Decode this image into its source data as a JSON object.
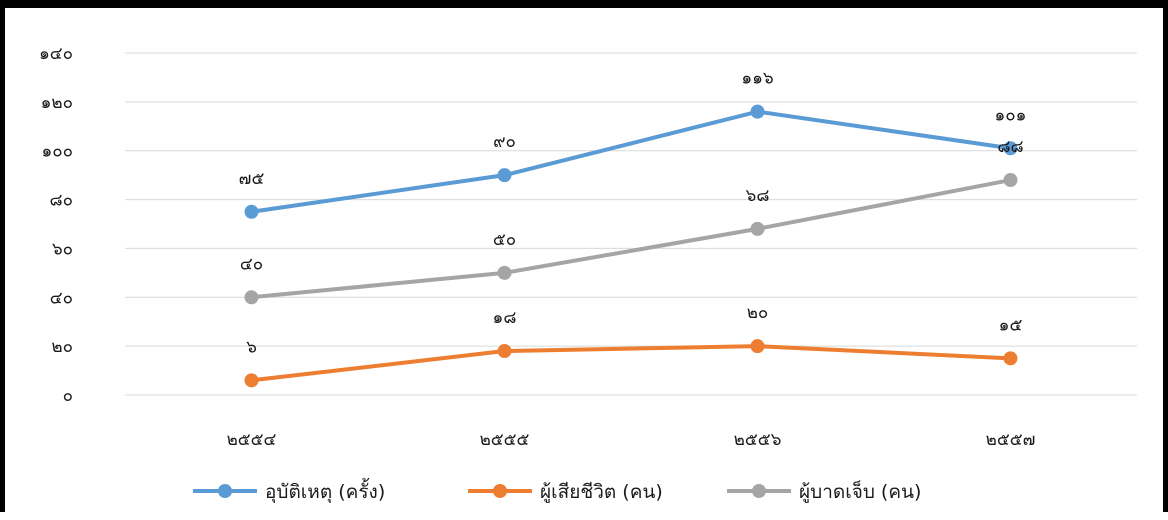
{
  "chart_data": {
    "type": "line",
    "categories": [
      "๒๕๕๔",
      "๒๕๕๕",
      "๒๕๕๖",
      "๒๕๕๗"
    ],
    "ylim": [
      0,
      140
    ],
    "y_ticks": [
      0,
      20,
      40,
      60,
      80,
      100,
      120,
      140
    ],
    "y_tick_labels": [
      "๐",
      "๒๐",
      "๔๐",
      "๖๐",
      "๘๐",
      "๑๐๐",
      "๑๒๐",
      "๑๔๐"
    ],
    "grid": true,
    "legend_position": "bottom",
    "series": [
      {
        "name": "อุบัติเหตุ (ครั้ง)",
        "color": "#5B9BD5",
        "values": [
          75,
          90,
          116,
          101
        ],
        "labels": [
          "๗๕",
          "๙๐",
          "๑๑๖",
          "๑๐๑"
        ]
      },
      {
        "name": "ผู้เสียชีวิต (คน)",
        "color": "#ED7D31",
        "values": [
          6,
          18,
          20,
          15
        ],
        "labels": [
          "๖",
          "๑๘",
          "๒๐",
          "๑๕"
        ]
      },
      {
        "name": "ผู้บาดเจ็บ (คน)",
        "color": "#A5A5A5",
        "values": [
          40,
          50,
          68,
          88
        ],
        "labels": [
          "๔๐",
          "๕๐",
          "๖๘",
          "๘๘"
        ]
      }
    ]
  }
}
